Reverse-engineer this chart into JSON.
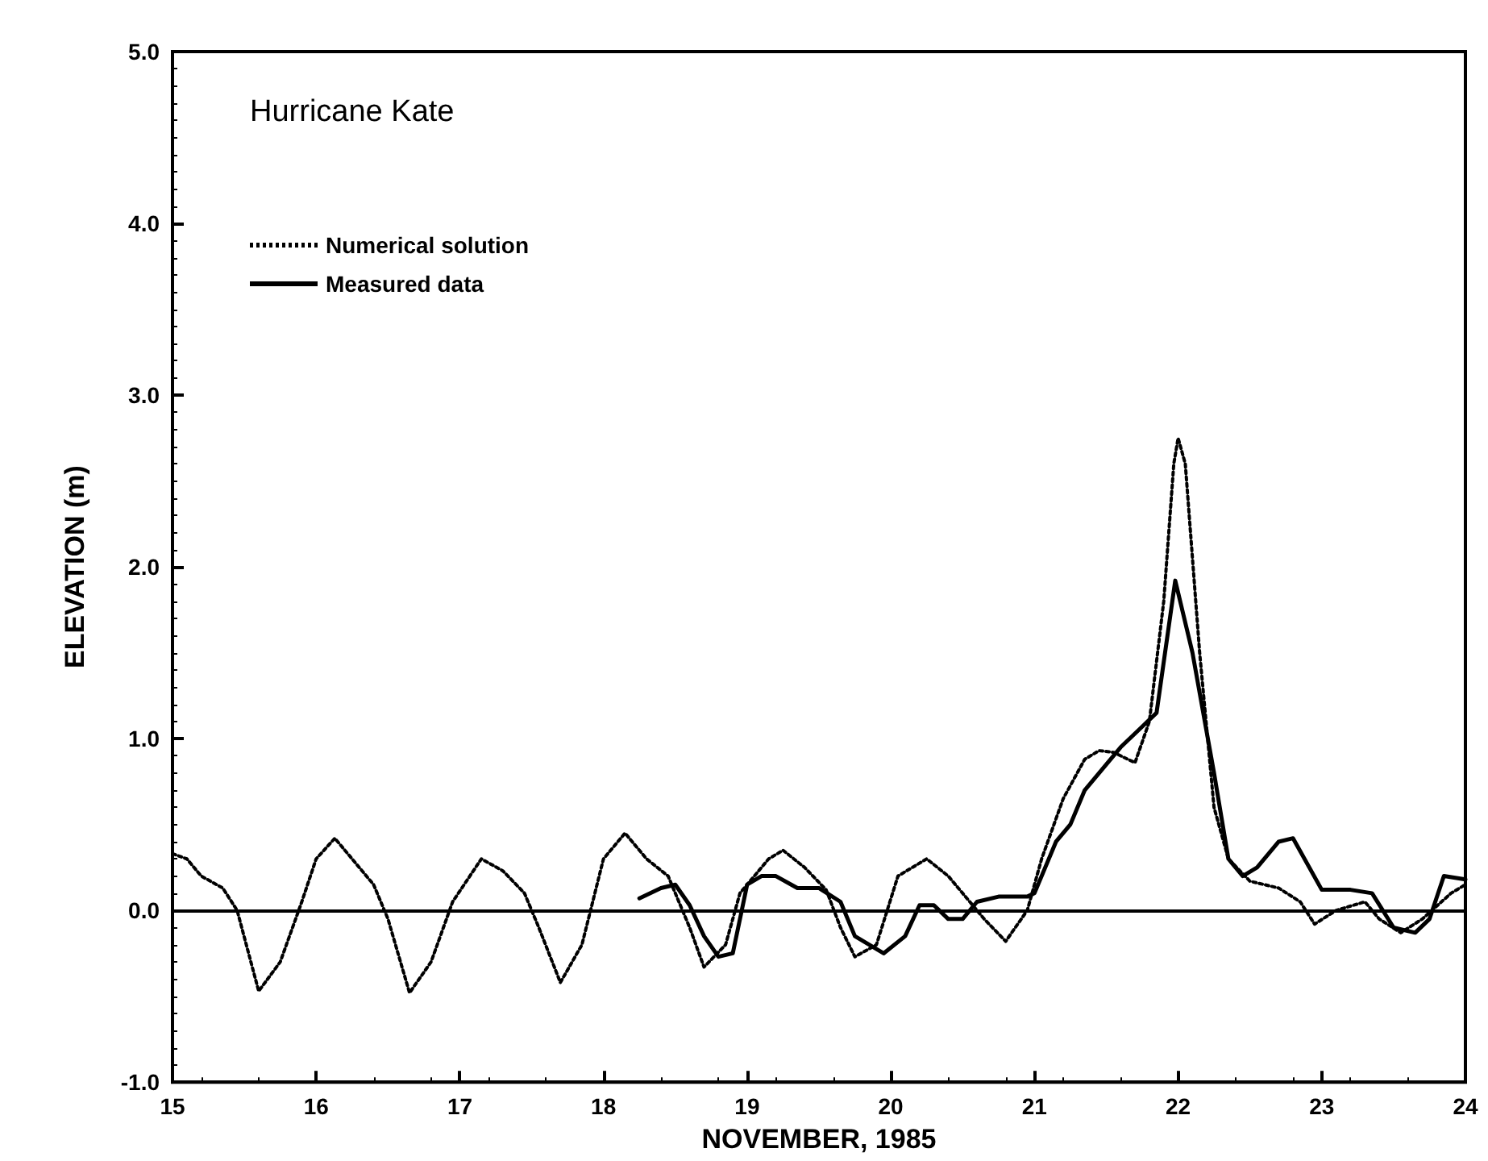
{
  "chart_data": {
    "type": "line",
    "title": "Hurricane Kate",
    "xlabel": "NOVEMBER, 1985",
    "ylabel": "ELEVATION (m)",
    "xlim": [
      15,
      24
    ],
    "xticks": [
      15,
      16,
      17,
      18,
      19,
      20,
      21,
      22,
      23,
      24
    ],
    "ylim": [
      -1,
      5
    ],
    "yticks": [
      {
        "value": -1,
        "label": "-1.0"
      },
      {
        "value": 0,
        "label": "0.0"
      },
      {
        "value": 1,
        "label": "1.0"
      },
      {
        "value": 2,
        "label": "2.0"
      },
      {
        "value": 3,
        "label": "3.0"
      },
      {
        "value": 4,
        "label": "4.0"
      },
      {
        "value": 5,
        "label": "5.0"
      }
    ],
    "grid": false,
    "legend": "top left",
    "marker": "none",
    "ref_lines": [
      {
        "axis": "y",
        "value": 0,
        "color": "#000000",
        "line_style": "solid"
      }
    ],
    "series": [
      {
        "name": "Numerical solution",
        "color": "#000000",
        "line_style": "dotted",
        "x": [
          15.0,
          15.1,
          15.2,
          15.35,
          15.45,
          15.6,
          15.75,
          15.9,
          16.0,
          16.13,
          16.25,
          16.4,
          16.5,
          16.65,
          16.8,
          16.95,
          17.15,
          17.3,
          17.45,
          17.55,
          17.7,
          17.85,
          18.0,
          18.15,
          18.3,
          18.45,
          18.6,
          18.7,
          18.85,
          18.95,
          19.15,
          19.25,
          19.4,
          19.55,
          19.65,
          19.75,
          19.9,
          20.05,
          20.25,
          20.4,
          20.55,
          20.65,
          20.8,
          20.95,
          21.05,
          21.2,
          21.35,
          21.45,
          21.55,
          21.7,
          21.8,
          21.9,
          21.97,
          22.0,
          22.05,
          22.15,
          22.25,
          22.35,
          22.5,
          22.7,
          22.85,
          22.95,
          23.1,
          23.3,
          23.4,
          23.55,
          23.7,
          23.9,
          24.0
        ],
        "values": [
          0.33,
          0.3,
          0.2,
          0.13,
          0.0,
          -0.47,
          -0.3,
          0.05,
          0.3,
          0.42,
          0.3,
          0.15,
          -0.05,
          -0.48,
          -0.3,
          0.05,
          0.3,
          0.23,
          0.1,
          -0.1,
          -0.42,
          -0.2,
          0.3,
          0.45,
          0.3,
          0.2,
          -0.1,
          -0.33,
          -0.2,
          0.1,
          0.3,
          0.35,
          0.25,
          0.12,
          -0.1,
          -0.27,
          -0.2,
          0.2,
          0.3,
          0.2,
          0.05,
          -0.05,
          -0.18,
          0.0,
          0.3,
          0.65,
          0.88,
          0.93,
          0.92,
          0.86,
          1.1,
          1.8,
          2.6,
          2.75,
          2.6,
          1.5,
          0.6,
          0.3,
          0.17,
          0.13,
          0.05,
          -0.08,
          0.0,
          0.05,
          -0.05,
          -0.13,
          -0.05,
          0.1,
          0.15
        ]
      },
      {
        "name": "Measured data",
        "color": "#000000",
        "line_style": "solid",
        "x": [
          18.25,
          18.4,
          18.5,
          18.6,
          18.7,
          18.8,
          18.9,
          19.0,
          19.1,
          19.2,
          19.35,
          19.5,
          19.65,
          19.75,
          19.95,
          20.1,
          20.2,
          20.3,
          20.4,
          20.5,
          20.6,
          20.75,
          20.95,
          21.0,
          21.15,
          21.25,
          21.35,
          21.5,
          21.6,
          21.75,
          21.85,
          21.98,
          22.1,
          22.25,
          22.35,
          22.45,
          22.55,
          22.7,
          22.8,
          23.0,
          23.2,
          23.35,
          23.5,
          23.65,
          23.75,
          23.85,
          24.0
        ],
        "values": [
          0.07,
          0.13,
          0.15,
          0.03,
          -0.15,
          -0.27,
          -0.25,
          0.15,
          0.2,
          0.2,
          0.13,
          0.13,
          0.05,
          -0.15,
          -0.25,
          -0.15,
          0.03,
          0.03,
          -0.05,
          -0.05,
          0.05,
          0.08,
          0.08,
          0.1,
          0.4,
          0.5,
          0.7,
          0.85,
          0.95,
          1.07,
          1.15,
          1.92,
          1.5,
          0.8,
          0.3,
          0.2,
          0.25,
          0.4,
          0.42,
          0.12,
          0.12,
          0.1,
          -0.1,
          -0.13,
          -0.05,
          0.2,
          0.18
        ]
      }
    ]
  }
}
